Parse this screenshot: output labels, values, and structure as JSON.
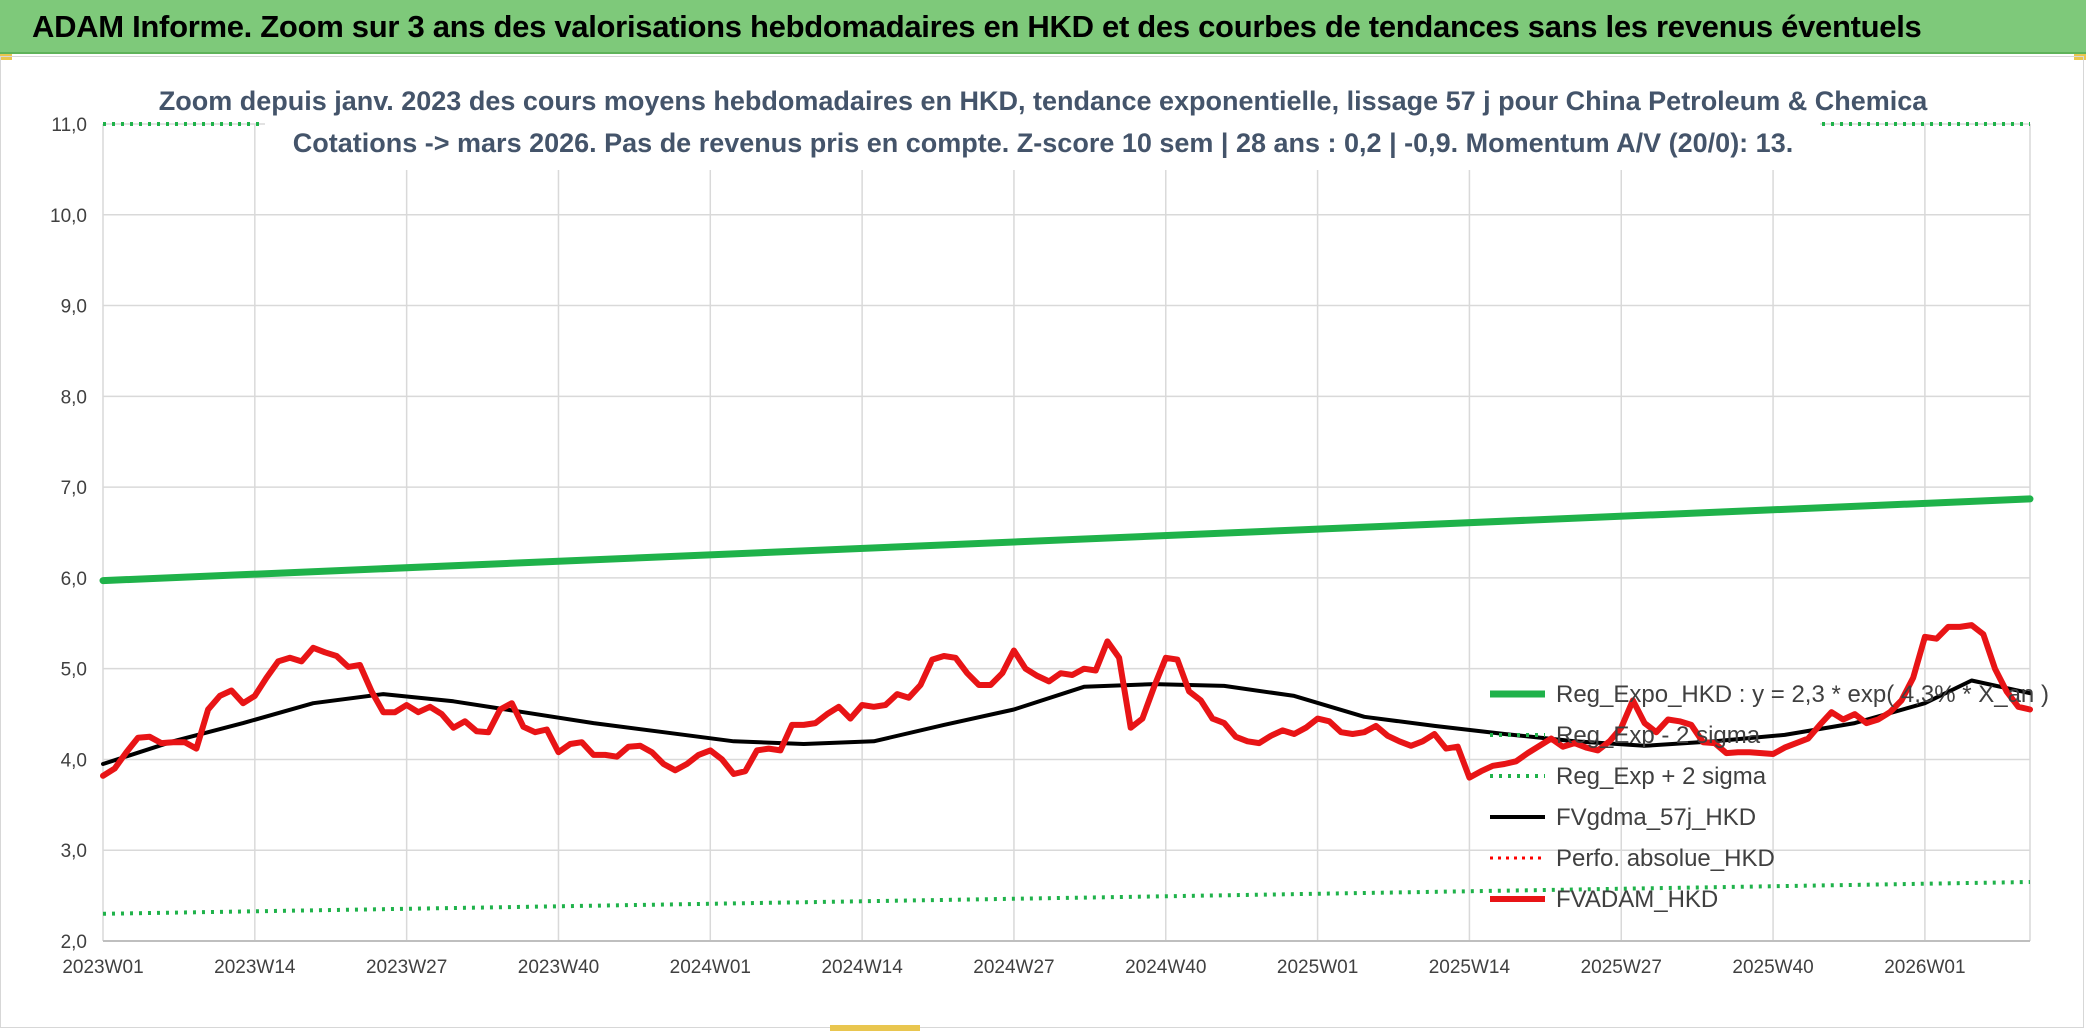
{
  "header": {
    "title": "ADAM Informe. Zoom sur 3 ans des valorisations hebdomadaires en HKD et des courbes de tendances sans les revenus éventuels"
  },
  "colors": {
    "header_bg": "#7ec97a",
    "reg_expo": "#1fb24a",
    "sigma": "#1fb24a",
    "fvgdma": "#000000",
    "perfo": "#ff0000",
    "fvadam": "#e81416",
    "grid": "#d9d9d9"
  },
  "chart_data": {
    "type": "line",
    "title": "Zoom depuis janv. 2023 des cours moyens hebdomadaires en HKD, tendance exponentielle, lissage 57 j pour China Petroleum & Chemica",
    "subtitle": "Cotations -> mars 2026. Pas de revenus pris en compte. Z-score 10 sem | 28 ans : 0,2 | -0,9. Momentum A/V (20/0): 13.",
    "ylim": [
      2.0,
      11.0
    ],
    "y_ticks": [
      "2,0",
      "3,0",
      "4,0",
      "5,0",
      "6,0",
      "7,0",
      "8,0",
      "9,0",
      "10,0",
      "11,0"
    ],
    "x_tick_labels": [
      "2023W01",
      "2023W14",
      "2023W27",
      "2023W40",
      "2024W01",
      "2024W14",
      "2024W27",
      "2024W40",
      "2025W01",
      "2025W14",
      "2025W27",
      "2025W40",
      "2026W01"
    ],
    "x_weeks_total": 166,
    "grid": true,
    "legend_position": "bottom-right",
    "series": [
      {
        "name": "Reg_Expo_HKD : y = 2,3 * exp( 4,3% * X_an )",
        "style": "solid-thick",
        "x": [
          0,
          165
        ],
        "values": [
          5.97,
          6.87
        ]
      },
      {
        "name": "Reg_Exp - 2 sigma",
        "style": "dotted",
        "x": [
          0,
          165
        ],
        "values": [
          2.3,
          2.65
        ]
      },
      {
        "name": "Reg_Exp + 2 sigma",
        "style": "dotted",
        "x": [
          0,
          165
        ],
        "values": [
          11.0,
          11.0
        ]
      },
      {
        "name": "FVgdma_57j_HKD",
        "style": "solid",
        "x": [
          0,
          6,
          12,
          18,
          24,
          30,
          36,
          42,
          48,
          54,
          60,
          66,
          72,
          78,
          84,
          90,
          96,
          102,
          108,
          114,
          120,
          126,
          132,
          138,
          144,
          150,
          156,
          160,
          165
        ],
        "values": [
          3.95,
          4.2,
          4.4,
          4.62,
          4.72,
          4.64,
          4.52,
          4.4,
          4.3,
          4.2,
          4.17,
          4.2,
          4.38,
          4.55,
          4.8,
          4.83,
          4.81,
          4.7,
          4.47,
          4.37,
          4.28,
          4.2,
          4.15,
          4.2,
          4.27,
          4.4,
          4.62,
          4.87,
          4.73
        ]
      },
      {
        "name": "Perfo. absolue_HKD",
        "style": "dotted-red",
        "x": [],
        "values": []
      },
      {
        "name": "FVADAM_HKD",
        "style": "solid-thick",
        "x": [
          0,
          1,
          2,
          3,
          4,
          5,
          6,
          7,
          8,
          9,
          10,
          11,
          12,
          13,
          14,
          15,
          16,
          17,
          18,
          19,
          20,
          21,
          22,
          23,
          24,
          25,
          26,
          27,
          28,
          29,
          30,
          31,
          32,
          33,
          34,
          35,
          36,
          37,
          38,
          39,
          40,
          41,
          42,
          43,
          44,
          45,
          46,
          47,
          48,
          49,
          50,
          51,
          52,
          53,
          54,
          55,
          56,
          57,
          58,
          59,
          60,
          61,
          62,
          63,
          64,
          65,
          66,
          67,
          68,
          69,
          70,
          71,
          72,
          73,
          74,
          75,
          76,
          77,
          78,
          79,
          80,
          81,
          82,
          83,
          84,
          85,
          86,
          87,
          88,
          89,
          90,
          91,
          92,
          93,
          94,
          95,
          96,
          97,
          98,
          99,
          100,
          101,
          102,
          103,
          104,
          105,
          106,
          107,
          108,
          109,
          110,
          111,
          112,
          113,
          114,
          115,
          116,
          117,
          118,
          119,
          120,
          121,
          122,
          123,
          124,
          125,
          126,
          127,
          128,
          129,
          130,
          131,
          132,
          133,
          134,
          135,
          136,
          137,
          138,
          139,
          140,
          141,
          142,
          143,
          144,
          145,
          146,
          147,
          148,
          149,
          150,
          151,
          152,
          153,
          154,
          155,
          156,
          157,
          158,
          159,
          160,
          161,
          162,
          163,
          164,
          165
        ],
        "values": [
          3.82,
          3.9,
          4.08,
          4.24,
          4.25,
          4.18,
          4.19,
          4.19,
          4.12,
          4.55,
          4.7,
          4.76,
          4.62,
          4.7,
          4.9,
          5.08,
          5.12,
          5.08,
          5.23,
          5.18,
          5.14,
          5.02,
          5.04,
          4.75,
          4.52,
          4.52,
          4.6,
          4.52,
          4.58,
          4.5,
          4.35,
          4.42,
          4.31,
          4.3,
          4.55,
          4.62,
          4.36,
          4.3,
          4.33,
          4.08,
          4.17,
          4.19,
          4.05,
          4.05,
          4.03,
          4.14,
          4.15,
          4.08,
          3.95,
          3.88,
          3.95,
          4.05,
          4.1,
          4.0,
          3.84,
          3.87,
          4.1,
          4.12,
          4.1,
          4.38,
          4.38,
          4.4,
          4.5,
          4.58,
          4.45,
          4.6,
          4.58,
          4.6,
          4.72,
          4.68,
          4.82,
          5.1,
          5.14,
          5.12,
          4.95,
          4.82,
          4.82,
          4.95,
          5.2,
          5.0,
          4.92,
          4.86,
          4.95,
          4.93,
          5.0,
          4.98,
          5.3,
          5.12,
          4.35,
          4.45,
          4.8,
          5.12,
          5.1,
          4.75,
          4.65,
          4.45,
          4.4,
          4.25,
          4.2,
          4.18,
          4.26,
          4.32,
          4.28,
          4.35,
          4.45,
          4.42,
          4.3,
          4.28,
          4.3,
          4.37,
          4.26,
          4.2,
          4.15,
          4.2,
          4.28,
          4.12,
          4.14,
          3.8,
          3.87,
          3.93,
          3.95,
          3.98,
          4.07,
          4.15,
          4.23,
          4.14,
          4.18,
          4.13,
          4.1,
          4.2,
          4.35,
          4.65,
          4.4,
          4.3,
          4.44,
          4.42,
          4.38,
          4.19,
          4.18,
          4.07,
          4.08,
          4.08,
          4.07,
          4.06,
          4.13,
          4.18,
          4.23,
          4.38,
          4.52,
          4.44,
          4.5,
          4.4,
          4.44,
          4.52,
          4.65,
          4.9,
          5.35,
          5.33,
          5.46,
          5.46,
          5.48,
          5.38,
          5.0,
          4.75,
          4.58,
          4.55
        ]
      }
    ]
  }
}
